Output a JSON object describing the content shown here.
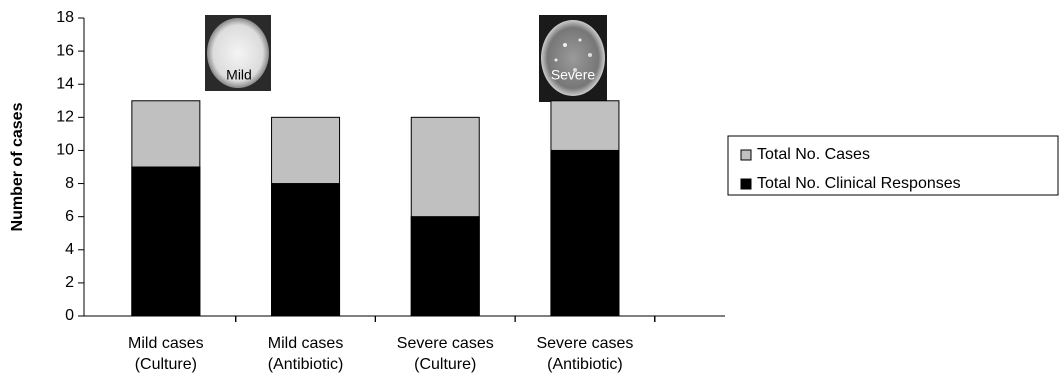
{
  "chart_data": {
    "type": "bar",
    "y_label": "Number of cases",
    "categories": [
      "Mild cases (Culture)",
      "Mild cases (Antibiotic)",
      "Severe cases (Culture)",
      "Severe cases (Antibiotic)"
    ],
    "series": [
      {
        "name": "Total No. Cases",
        "color": "#c0c0c0",
        "values": [
          13,
          12,
          12,
          13
        ]
      },
      {
        "name": "Total No. Clinical Responses",
        "color": "#000000",
        "values": [
          9,
          8,
          6,
          10
        ]
      }
    ],
    "annotations": [
      "Mild",
      "Severe"
    ],
    "ylim": [
      0,
      18
    ],
    "yticks": [
      0,
      2,
      4,
      6,
      8,
      10,
      12,
      14,
      16,
      18
    ],
    "legend": "right"
  }
}
